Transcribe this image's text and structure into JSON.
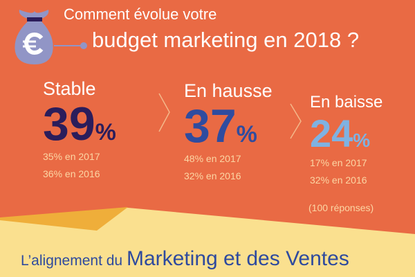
{
  "title": {
    "line1": "Comment évolue votre",
    "line2": "budget marketing en 2018 ?"
  },
  "icon": "money-bag-euro-icon",
  "stats": [
    {
      "label": "Stable",
      "value": "39",
      "unit": "%",
      "color": "#2b1d5b",
      "history": [
        "35% en 2017",
        "36% en 2016"
      ]
    },
    {
      "label": "En hausse",
      "value": "37",
      "unit": "%",
      "color": "#2f4c9f",
      "history": [
        "48% en 2017",
        "32% en 2016"
      ]
    },
    {
      "label": "En baisse",
      "value": "24",
      "unit": "%",
      "color": "#7fb2e2",
      "history": [
        "17% en 2017",
        "32% en 2016"
      ]
    }
  ],
  "responses": "(100 réponses)",
  "footer": {
    "prefix": "L’alignement du",
    "emphasis": "Marketing et des Ventes"
  },
  "colors": {
    "background": "#e96a44",
    "band": "#fae08f",
    "accent": "#efae3a"
  }
}
